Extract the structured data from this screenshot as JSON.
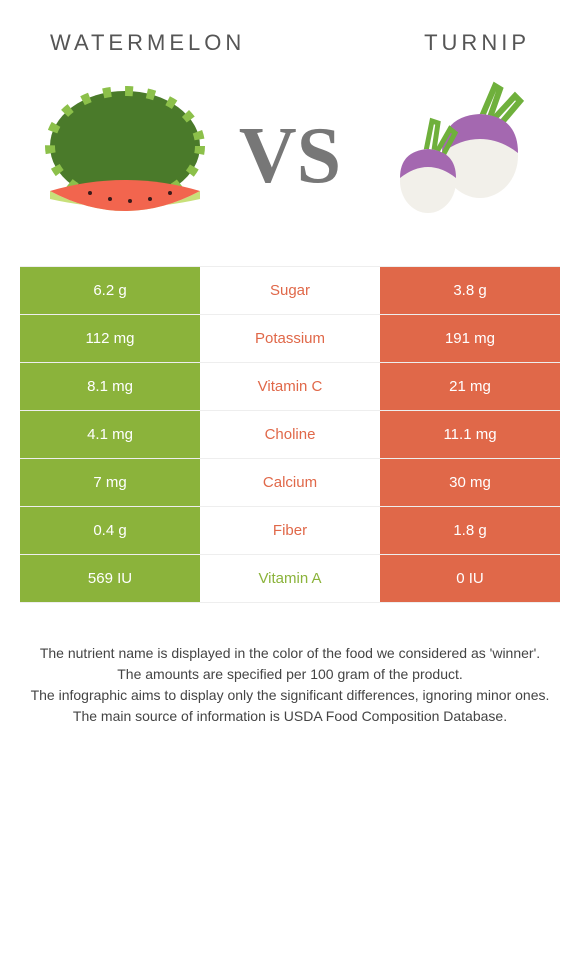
{
  "header": {
    "left": "WATERMELON",
    "right": "TURNIP",
    "vs": "VS"
  },
  "colors": {
    "watermelon": "#8bb33b",
    "turnip": "#e06849",
    "row_bg": "#ffffff"
  },
  "left_food": {
    "outer": "#4a7a2a",
    "stripe": "#8cc04a",
    "flesh": "#f2654e",
    "rind": "#c8e07a"
  },
  "right_food": {
    "top": "#a468b0",
    "bottom": "#f2f0ea",
    "leaf": "#6fb03c"
  },
  "nutrients": [
    {
      "name": "Sugar",
      "left": "6.2 g",
      "right": "3.8 g",
      "winner": "turnip"
    },
    {
      "name": "Potassium",
      "left": "112 mg",
      "right": "191 mg",
      "winner": "turnip"
    },
    {
      "name": "Vitamin C",
      "left": "8.1 mg",
      "right": "21 mg",
      "winner": "turnip"
    },
    {
      "name": "Choline",
      "left": "4.1 mg",
      "right": "11.1 mg",
      "winner": "turnip"
    },
    {
      "name": "Calcium",
      "left": "7 mg",
      "right": "30 mg",
      "winner": "turnip"
    },
    {
      "name": "Fiber",
      "left": "0.4 g",
      "right": "1.8 g",
      "winner": "turnip"
    },
    {
      "name": "Vitamin A",
      "left": "569 IU",
      "right": "0 IU",
      "winner": "watermelon"
    }
  ],
  "footer": {
    "l1": "The nutrient name is displayed in the color of the food we considered as 'winner'.",
    "l2": "The amounts are specified per 100 gram of the product.",
    "l3": "The infographic aims to display only the significant differences, ignoring minor ones.",
    "l4": "The main source of information is USDA Food Composition Database."
  }
}
